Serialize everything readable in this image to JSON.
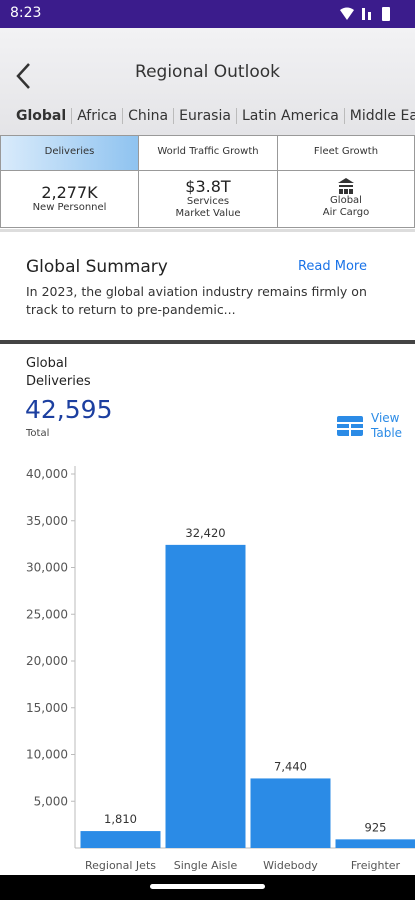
{
  "status_bar": {
    "time": "8:23"
  },
  "header": {
    "title": "Regional Outlook",
    "tabs": [
      "Global",
      "Africa",
      "China",
      "Eurasia",
      "Latin America",
      "Middle Ea"
    ]
  },
  "tiles": {
    "row1": [
      "Deliveries",
      "World Traffic Growth",
      "Fleet Growth"
    ],
    "row2": [
      {
        "value": "2,277K",
        "label": "New Personnel"
      },
      {
        "value": "$3.8T",
        "label": [
          "Services",
          "Market Value"
        ]
      },
      {
        "label": [
          "Global",
          "Air Cargo"
        ]
      }
    ]
  },
  "summary": {
    "title": "Global Summary",
    "action": "Read More",
    "lines": [
      "In 2023, the global aviation industry remains firmly on",
      "track to return to pre-pandemic..."
    ]
  },
  "deliveries": {
    "heading": [
      "Global",
      "Deliveries"
    ],
    "total": "42,595",
    "total_label": "Total",
    "view_table": [
      "View",
      "Table"
    ]
  },
  "chart_data": {
    "type": "bar",
    "categories": [
      "Regional Jets",
      "Single Aisle",
      "Widebody",
      "Freighter"
    ],
    "values": [
      1810,
      32420,
      7440,
      925
    ],
    "value_labels": [
      "1,810",
      "32,420",
      "7,440",
      "925"
    ],
    "color": "#2b8be6",
    "ylim": [
      0,
      40000
    ],
    "yticks": [
      {
        "value": 5000,
        "label": "5,000"
      },
      {
        "value": 10000,
        "label": "10,000"
      },
      {
        "value": 15000,
        "label": "15,000"
      },
      {
        "value": 20000,
        "label": "20,000"
      },
      {
        "value": 25000,
        "label": "25,000"
      },
      {
        "value": 30000,
        "label": "30,000"
      },
      {
        "value": 35000,
        "label": "35,000"
      },
      {
        "value": 40000,
        "label": "40,000"
      }
    ]
  }
}
